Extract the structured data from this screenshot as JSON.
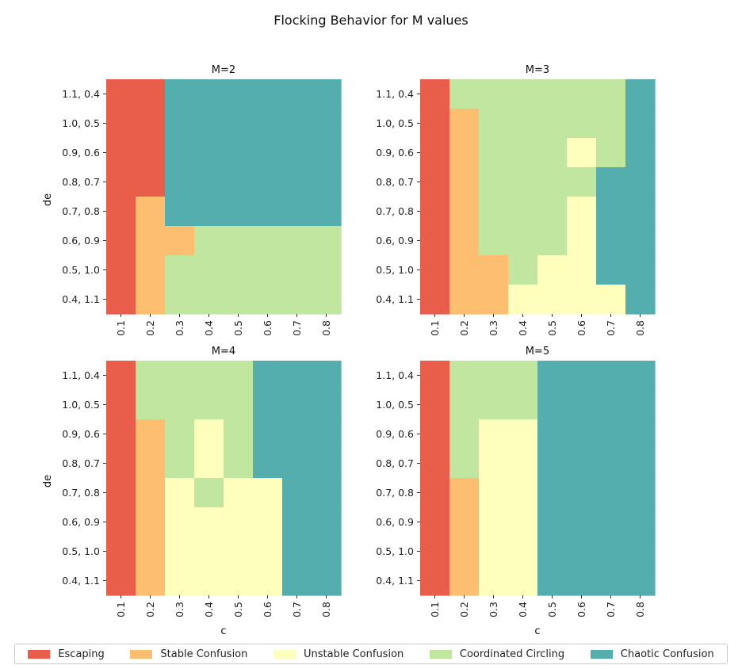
{
  "chart_data": {
    "type": "heatmap",
    "title": "Flocking Behavior for M values",
    "xlabel": "c",
    "ylabel": "de",
    "x_ticks": [
      "0.1",
      "0.2",
      "0.3",
      "0.4",
      "0.5",
      "0.6",
      "0.7",
      "0.8"
    ],
    "y_ticks": [
      "1.1, 0.4",
      "1.0, 0.5",
      "0.9, 0.6",
      "0.8, 0.7",
      "0.7, 0.8",
      "0.6, 0.9",
      "0.5, 1.0",
      "0.4, 1.1"
    ],
    "categories": [
      {
        "id": 0,
        "name": "Escaping",
        "color": "#e95e4a"
      },
      {
        "id": 1,
        "name": "Stable Confusion",
        "color": "#fdbe6f"
      },
      {
        "id": 2,
        "name": "Unstable Confusion",
        "color": "#fefebd"
      },
      {
        "id": 3,
        "name": "Coordinated Circling",
        "color": "#c1e6a0"
      },
      {
        "id": 4,
        "name": "Chaotic Confusion",
        "color": "#54aeae"
      }
    ],
    "legend_position": "bottom",
    "subplots": [
      {
        "title": "M=2",
        "grid": [
          [
            0,
            0,
            4,
            4,
            4,
            4,
            4,
            4
          ],
          [
            0,
            0,
            4,
            4,
            4,
            4,
            4,
            4
          ],
          [
            0,
            0,
            4,
            4,
            4,
            4,
            4,
            4
          ],
          [
            0,
            0,
            4,
            4,
            4,
            4,
            4,
            4
          ],
          [
            0,
            1,
            4,
            4,
            4,
            4,
            4,
            4
          ],
          [
            0,
            1,
            1,
            3,
            3,
            3,
            3,
            3
          ],
          [
            0,
            1,
            3,
            3,
            3,
            3,
            3,
            3
          ],
          [
            0,
            1,
            3,
            3,
            3,
            3,
            3,
            3
          ]
        ]
      },
      {
        "title": "M=3",
        "grid": [
          [
            0,
            3,
            3,
            3,
            3,
            3,
            3,
            4
          ],
          [
            0,
            1,
            3,
            3,
            3,
            3,
            3,
            4
          ],
          [
            0,
            1,
            3,
            3,
            3,
            2,
            3,
            4
          ],
          [
            0,
            1,
            3,
            3,
            3,
            3,
            4,
            4
          ],
          [
            0,
            1,
            3,
            3,
            3,
            2,
            4,
            4
          ],
          [
            0,
            1,
            3,
            3,
            3,
            2,
            4,
            4
          ],
          [
            0,
            1,
            1,
            3,
            2,
            2,
            4,
            4
          ],
          [
            0,
            1,
            1,
            2,
            2,
            2,
            2,
            4
          ]
        ]
      },
      {
        "title": "M=4",
        "grid": [
          [
            0,
            3,
            3,
            3,
            3,
            4,
            4,
            4
          ],
          [
            0,
            3,
            3,
            3,
            3,
            4,
            4,
            4
          ],
          [
            0,
            1,
            3,
            2,
            3,
            4,
            4,
            4
          ],
          [
            0,
            1,
            3,
            2,
            3,
            4,
            4,
            4
          ],
          [
            0,
            1,
            2,
            3,
            2,
            2,
            4,
            4
          ],
          [
            0,
            1,
            2,
            2,
            2,
            2,
            4,
            4
          ],
          [
            0,
            1,
            2,
            2,
            2,
            2,
            4,
            4
          ],
          [
            0,
            1,
            2,
            2,
            2,
            2,
            4,
            4
          ]
        ]
      },
      {
        "title": "M=5",
        "grid": [
          [
            0,
            3,
            3,
            3,
            4,
            4,
            4,
            4
          ],
          [
            0,
            3,
            3,
            3,
            4,
            4,
            4,
            4
          ],
          [
            0,
            3,
            2,
            2,
            4,
            4,
            4,
            4
          ],
          [
            0,
            3,
            2,
            2,
            4,
            4,
            4,
            4
          ],
          [
            0,
            1,
            2,
            2,
            4,
            4,
            4,
            4
          ],
          [
            0,
            1,
            2,
            2,
            4,
            4,
            4,
            4
          ],
          [
            0,
            1,
            2,
            2,
            4,
            4,
            4,
            4
          ],
          [
            0,
            1,
            2,
            2,
            4,
            4,
            4,
            4
          ]
        ]
      }
    ]
  }
}
